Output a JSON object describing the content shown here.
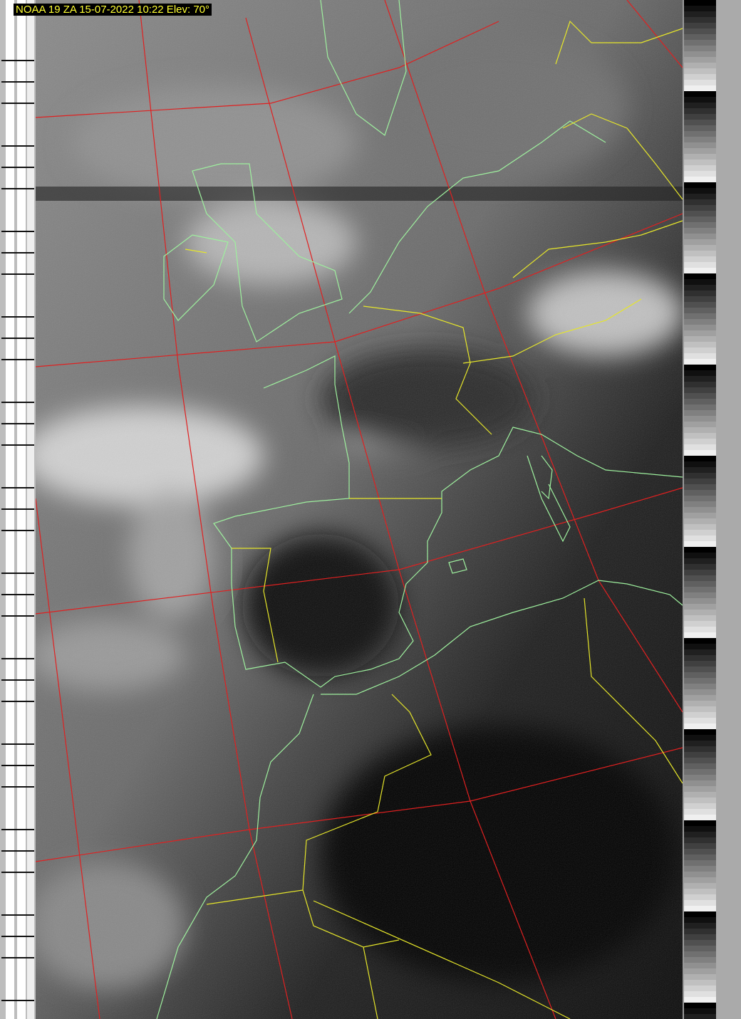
{
  "caption": {
    "text": "NOAA 19 ZA 15-07-2022 10:22 Elev: 70°",
    "text_color": "#ffff33",
    "background": "#000000"
  },
  "overlay_colors": {
    "coastline": "#9ef09e",
    "borders": "#e6e62a",
    "graticule": "#e02020"
  },
  "image": {
    "type": "APT satellite image (grayscale) with map overlay",
    "left_strip": "telemetry sync bars",
    "right_strip": "calibration wedges"
  }
}
